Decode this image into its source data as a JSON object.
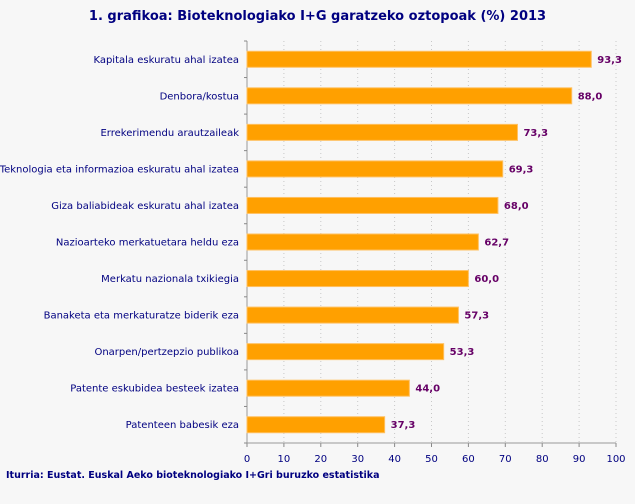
{
  "chart_data": {
    "type": "bar",
    "orientation": "horizontal",
    "title": "1. grafikoa: Bioteknologiako I+G garatzeko oztopoak (%) 2013",
    "categories": [
      "Kapitala eskuratu ahal izatea",
      "Denbora/kostua",
      "Errekerimendu arautzaileak",
      "Teknologia eta informazioa eskuratu ahal izatea",
      "Giza baliabideak eskuratu ahal izatea",
      "Nazioarteko merkatuetara heldu eza",
      "Merkatu nazionala txikiegia",
      "Banaketa eta merkaturatze biderik eza",
      "Onarpen/pertzepzio publikoa",
      "Patente eskubidea besteek izatea",
      "Patenteen babesik eza"
    ],
    "values": [
      93.3,
      88.0,
      73.3,
      69.3,
      68.0,
      62.7,
      60.0,
      57.3,
      53.3,
      44.0,
      37.3
    ],
    "labels": [
      "93,3",
      "88,0",
      "73,3",
      "69,3",
      "68,0",
      "62,7",
      "60,0",
      "57,3",
      "53,3",
      "44,0",
      "37,3"
    ],
    "xlim": [
      0,
      100
    ],
    "xticks": [
      0,
      10,
      20,
      30,
      40,
      50,
      60,
      70,
      80,
      90,
      100
    ],
    "grid": true,
    "bar_color": "#ffa000",
    "source": "Iturria: Eustat. Euskal Aeko bioteknologiako I+Gri buruzko estatistika"
  }
}
